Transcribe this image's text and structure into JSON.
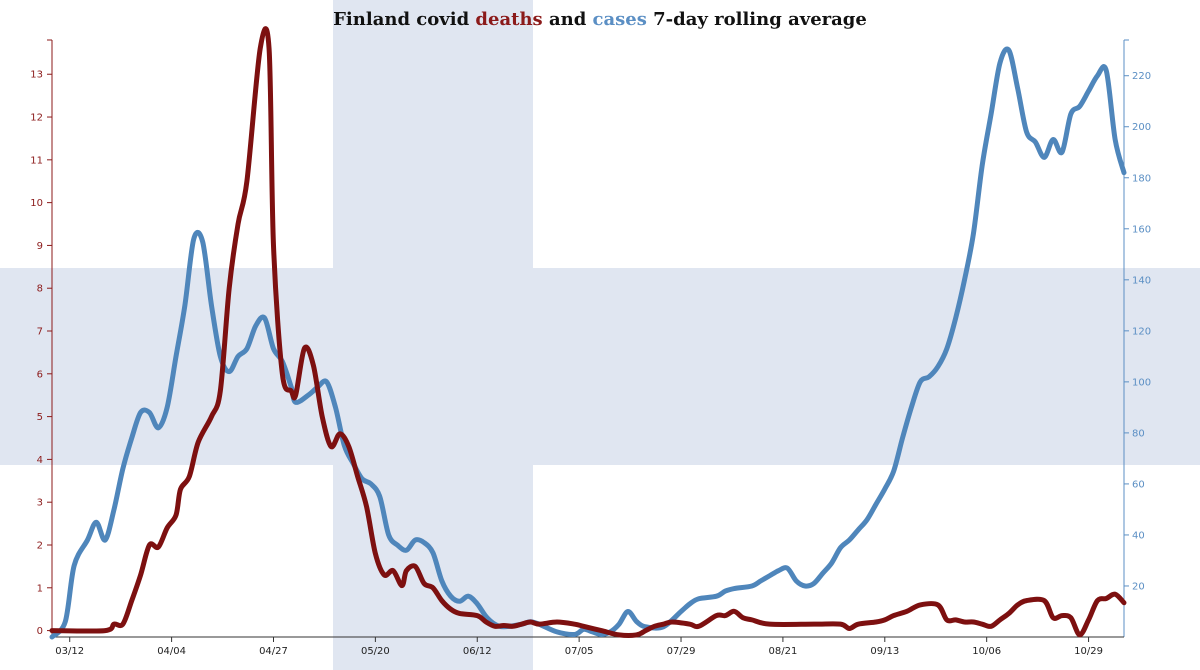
{
  "chart_data": {
    "type": "line",
    "title": {
      "parts": [
        {
          "text": "Finland covid ",
          "color": "#111111"
        },
        {
          "text": "deaths",
          "color": "#8b1a1a"
        },
        {
          "text": " and ",
          "color": "#111111"
        },
        {
          "text": "cases",
          "color": "#5b8fc4"
        },
        {
          "text": " 7-day rolling average",
          "color": "#111111"
        }
      ]
    },
    "background_flag_color": "#e0e6f1",
    "x_axis": {
      "ticks": [
        {
          "day": 2,
          "label": "03/12"
        },
        {
          "day": 25,
          "label": "04/04"
        },
        {
          "day": 48,
          "label": "04/27"
        },
        {
          "day": 71,
          "label": "05/20"
        },
        {
          "day": 94,
          "label": "06/12"
        },
        {
          "day": 117,
          "label": "07/05"
        },
        {
          "day": 140,
          "label": "07/29"
        },
        {
          "day": 163,
          "label": "08/21"
        },
        {
          "day": 186,
          "label": "09/13"
        },
        {
          "day": 209,
          "label": "10/06"
        },
        {
          "day": 232,
          "label": "10/29"
        }
      ],
      "range": [
        -2,
        240
      ]
    },
    "y_left": {
      "color": "#8b1a1a",
      "range": [
        -0.15,
        13.8
      ],
      "ticks": [
        0,
        1,
        2,
        3,
        4,
        5,
        6,
        7,
        8,
        9,
        10,
        11,
        12,
        13
      ]
    },
    "y_right": {
      "color": "#5b8fc4",
      "range": [
        0,
        234
      ],
      "ticks": [
        20,
        40,
        60,
        80,
        100,
        120,
        140,
        160,
        180,
        200,
        220
      ]
    },
    "series": [
      {
        "id": "deaths",
        "axis": "left",
        "color": "#7d1010",
        "points": [
          [
            -2,
            0
          ],
          [
            10,
            0
          ],
          [
            12,
            0.15
          ],
          [
            14,
            0.15
          ],
          [
            16,
            0.7
          ],
          [
            18,
            1.3
          ],
          [
            20,
            2.0
          ],
          [
            22,
            1.95
          ],
          [
            24,
            2.4
          ],
          [
            26,
            2.7
          ],
          [
            27,
            3.3
          ],
          [
            29,
            3.6
          ],
          [
            31,
            4.4
          ],
          [
            34,
            5.0
          ],
          [
            36,
            5.6
          ],
          [
            38,
            8.0
          ],
          [
            40,
            9.5
          ],
          [
            42,
            10.5
          ],
          [
            45,
            13.6
          ],
          [
            47,
            13.6
          ],
          [
            48,
            9.0
          ],
          [
            50,
            6.0
          ],
          [
            52,
            5.6
          ],
          [
            53,
            5.5
          ],
          [
            55,
            6.6
          ],
          [
            57,
            6.2
          ],
          [
            59,
            5.0
          ],
          [
            61,
            4.3
          ],
          [
            63,
            4.6
          ],
          [
            65,
            4.3
          ],
          [
            67,
            3.6
          ],
          [
            69,
            2.9
          ],
          [
            71,
            1.8
          ],
          [
            73,
            1.3
          ],
          [
            75,
            1.4
          ],
          [
            77,
            1.05
          ],
          [
            78,
            1.4
          ],
          [
            80,
            1.5
          ],
          [
            82,
            1.1
          ],
          [
            84,
            1.0
          ],
          [
            86,
            0.7
          ],
          [
            88,
            0.5
          ],
          [
            90,
            0.4
          ],
          [
            94,
            0.35
          ],
          [
            96,
            0.2
          ],
          [
            98,
            0.1
          ],
          [
            100,
            0.12
          ],
          [
            102,
            0.1
          ],
          [
            104,
            0.15
          ],
          [
            106,
            0.2
          ],
          [
            108,
            0.15
          ],
          [
            112,
            0.2
          ],
          [
            116,
            0.15
          ],
          [
            118,
            0.1
          ],
          [
            122,
            0
          ],
          [
            126,
            -0.1
          ],
          [
            130,
            -0.1
          ],
          [
            132,
            0
          ],
          [
            134,
            0.1
          ],
          [
            136,
            0.15
          ],
          [
            138,
            0.2
          ],
          [
            142,
            0.15
          ],
          [
            144,
            0.1
          ],
          [
            148,
            0.35
          ],
          [
            150,
            0.35
          ],
          [
            152,
            0.45
          ],
          [
            154,
            0.3
          ],
          [
            156,
            0.25
          ],
          [
            160,
            0.15
          ],
          [
            170,
            0.15
          ],
          [
            176,
            0.15
          ],
          [
            178,
            0.05
          ],
          [
            180,
            0.15
          ],
          [
            184,
            0.2
          ],
          [
            186,
            0.25
          ],
          [
            188,
            0.35
          ],
          [
            191,
            0.45
          ],
          [
            194,
            0.6
          ],
          [
            198,
            0.6
          ],
          [
            200,
            0.25
          ],
          [
            202,
            0.25
          ],
          [
            204,
            0.2
          ],
          [
            206,
            0.2
          ],
          [
            208,
            0.15
          ],
          [
            210,
            0.1
          ],
          [
            212,
            0.25
          ],
          [
            214,
            0.4
          ],
          [
            216,
            0.6
          ],
          [
            218,
            0.7
          ],
          [
            222,
            0.7
          ],
          [
            224,
            0.3
          ],
          [
            226,
            0.35
          ],
          [
            228,
            0.3
          ],
          [
            230,
            -0.1
          ],
          [
            232,
            0.25
          ],
          [
            234,
            0.7
          ],
          [
            236,
            0.75
          ],
          [
            238,
            0.85
          ],
          [
            240,
            0.65
          ]
        ]
      },
      {
        "id": "cases",
        "axis": "right",
        "color": "#4f86bb",
        "points": [
          [
            -2,
            0
          ],
          [
            1,
            6
          ],
          [
            3,
            28
          ],
          [
            6,
            38
          ],
          [
            8,
            45
          ],
          [
            10,
            38
          ],
          [
            12,
            50
          ],
          [
            14,
            66
          ],
          [
            16,
            78
          ],
          [
            18,
            88
          ],
          [
            20,
            88
          ],
          [
            22,
            82
          ],
          [
            24,
            90
          ],
          [
            26,
            110
          ],
          [
            28,
            130
          ],
          [
            30,
            156
          ],
          [
            32,
            155
          ],
          [
            34,
            130
          ],
          [
            36,
            110
          ],
          [
            38,
            104
          ],
          [
            40,
            110
          ],
          [
            42,
            113
          ],
          [
            44,
            122
          ],
          [
            46,
            125
          ],
          [
            48,
            113
          ],
          [
            50,
            108
          ],
          [
            52,
            98
          ],
          [
            53,
            92
          ],
          [
            56,
            95
          ],
          [
            58,
            98
          ],
          [
            60,
            100
          ],
          [
            62,
            90
          ],
          [
            64,
            75
          ],
          [
            66,
            68
          ],
          [
            68,
            62
          ],
          [
            70,
            60
          ],
          [
            72,
            55
          ],
          [
            74,
            40
          ],
          [
            76,
            36
          ],
          [
            78,
            34
          ],
          [
            80,
            38
          ],
          [
            82,
            37
          ],
          [
            84,
            33
          ],
          [
            86,
            22
          ],
          [
            88,
            16
          ],
          [
            90,
            14
          ],
          [
            92,
            16
          ],
          [
            94,
            13
          ],
          [
            96,
            8
          ],
          [
            98,
            5
          ],
          [
            100,
            4
          ],
          [
            104,
            5
          ],
          [
            106,
            6
          ],
          [
            108,
            5
          ],
          [
            112,
            2
          ],
          [
            116,
            1
          ],
          [
            118,
            3
          ],
          [
            120,
            2
          ],
          [
            122,
            1
          ],
          [
            124,
            2
          ],
          [
            126,
            5
          ],
          [
            128,
            10
          ],
          [
            130,
            6
          ],
          [
            132,
            4
          ],
          [
            136,
            4
          ],
          [
            140,
            10
          ],
          [
            142,
            13
          ],
          [
            144,
            15
          ],
          [
            148,
            16
          ],
          [
            150,
            18
          ],
          [
            152,
            19
          ],
          [
            156,
            20
          ],
          [
            158,
            22
          ],
          [
            160,
            24
          ],
          [
            162,
            26
          ],
          [
            164,
            27
          ],
          [
            166,
            22
          ],
          [
            168,
            20
          ],
          [
            170,
            21
          ],
          [
            172,
            25
          ],
          [
            174,
            29
          ],
          [
            176,
            35
          ],
          [
            178,
            38
          ],
          [
            180,
            42
          ],
          [
            182,
            46
          ],
          [
            184,
            52
          ],
          [
            186,
            58
          ],
          [
            188,
            65
          ],
          [
            190,
            78
          ],
          [
            192,
            90
          ],
          [
            194,
            100
          ],
          [
            196,
            102
          ],
          [
            198,
            106
          ],
          [
            200,
            113
          ],
          [
            202,
            125
          ],
          [
            204,
            140
          ],
          [
            206,
            158
          ],
          [
            208,
            185
          ],
          [
            210,
            205
          ],
          [
            212,
            225
          ],
          [
            214,
            230
          ],
          [
            216,
            215
          ],
          [
            218,
            198
          ],
          [
            220,
            194
          ],
          [
            222,
            188
          ],
          [
            224,
            195
          ],
          [
            226,
            190
          ],
          [
            228,
            205
          ],
          [
            230,
            208
          ],
          [
            232,
            214
          ],
          [
            234,
            220
          ],
          [
            236,
            222
          ],
          [
            238,
            195
          ],
          [
            240,
            182
          ]
        ]
      }
    ]
  }
}
